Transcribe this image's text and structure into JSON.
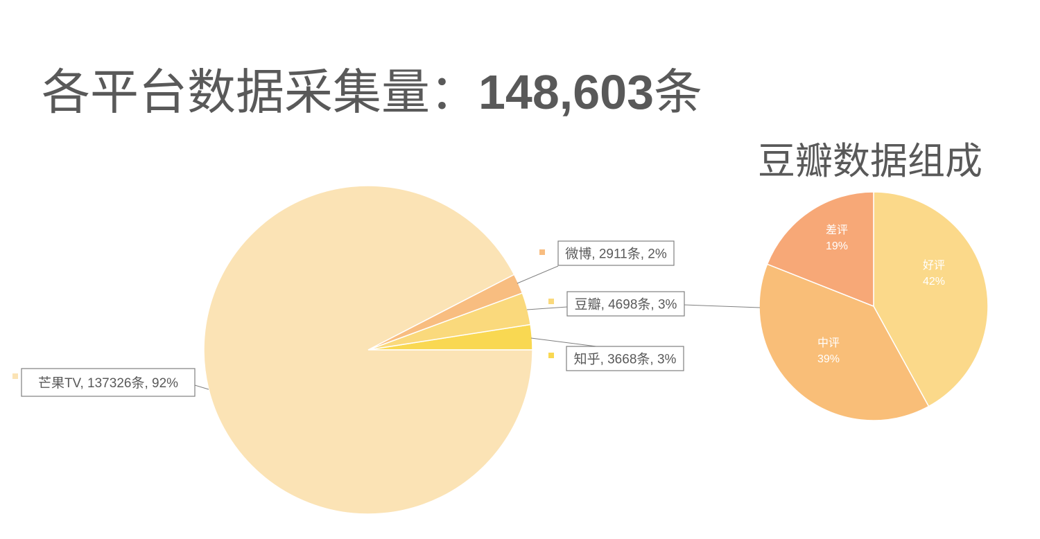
{
  "header": {
    "title_prefix": "各平台数据采集量：",
    "title_total": "148,603",
    "title_suffix": "条"
  },
  "douban_title": "豆瓣数据组成",
  "colors": {
    "text": "#595959",
    "mango": "#FBE3B5",
    "weibo": "#F8BD80",
    "douban": "#FAD97C",
    "zhihu": "#F9D852",
    "good": "#FBD98A",
    "neutral": "#F9BE78",
    "bad": "#F7A877"
  },
  "chart_data": [
    {
      "type": "pie",
      "title": "各平台数据采集量：148,603条",
      "slices": [
        {
          "name": "芒果TV",
          "value": 137326,
          "percent": "92%",
          "label": "芒果TV, 137326条, 92%"
        },
        {
          "name": "微博",
          "value": 2911,
          "percent": "2%",
          "label": "微博, 2911条, 2%"
        },
        {
          "name": "豆瓣",
          "value": 4698,
          "percent": "3%",
          "label": "豆瓣, 4698条, 3%"
        },
        {
          "name": "知乎",
          "value": 3668,
          "percent": "3%",
          "label": "知乎, 3668条, 3%"
        }
      ]
    },
    {
      "type": "pie",
      "title": "豆瓣数据组成",
      "slices": [
        {
          "name": "好评",
          "value": 42,
          "percent": "42%"
        },
        {
          "name": "中评",
          "value": 39,
          "percent": "39%"
        },
        {
          "name": "差评",
          "value": 19,
          "percent": "19%"
        }
      ]
    }
  ]
}
